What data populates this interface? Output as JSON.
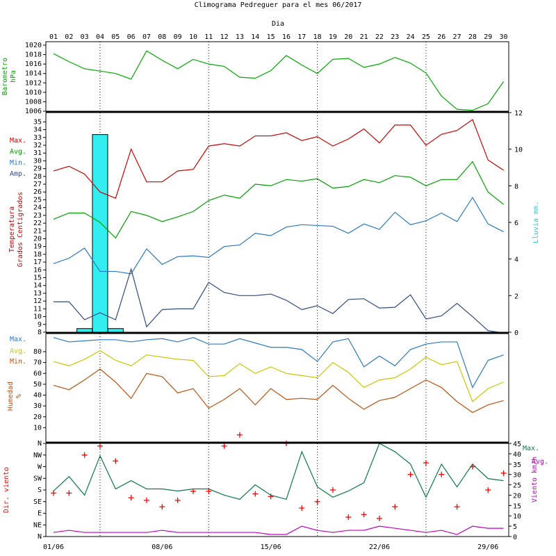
{
  "title": "Climograma Pedreguer para el mes 06/2017",
  "day_axis_label": "Dia",
  "days": [
    "01",
    "02",
    "03",
    "04",
    "05",
    "06",
    "07",
    "08",
    "09",
    "10",
    "11",
    "12",
    "13",
    "14",
    "15",
    "16",
    "17",
    "18",
    "19",
    "20",
    "21",
    "22",
    "23",
    "24",
    "25",
    "26",
    "27",
    "28",
    "29",
    "30"
  ],
  "date_ticks": [
    "01/06",
    "08/06",
    "15/06",
    "22/06",
    "29/06"
  ],
  "colors": {
    "max": "#cc0000",
    "avg": "#00a000",
    "min": "#2a78c8",
    "amp": "#304a80",
    "rain": "#33eeee",
    "hum_avg": "#c8c800",
    "hum_min": "#c05010",
    "wind_dir": "#ff0000",
    "wind_avg": "#c000c0",
    "wind_max": "#0a7a4a",
    "baro": "#00aa00"
  },
  "chart_data": [
    {
      "type": "line",
      "title": "Barometro hPa",
      "ylabel": [
        "Barometro",
        "hPa"
      ],
      "ylim": [
        1006,
        1020
      ],
      "yticks": [
        "1006",
        "1008",
        "1010",
        "1012",
        "1014",
        "1016",
        "1018",
        "1020"
      ],
      "series": [
        {
          "name": "Barometro",
          "values": [
            1018.2,
            1016.5,
            1015,
            1014.5,
            1014,
            1012.8,
            1018.8,
            1016.8,
            1015,
            1017,
            1016,
            1015.5,
            1013.2,
            1013,
            1014.6,
            1017.8,
            1015.8,
            1014,
            1017,
            1017.2,
            1015.3,
            1016,
            1017.4,
            1016.2,
            1014.1,
            1009.2,
            1006.4,
            1006.2,
            1007.6,
            1012.3
          ]
        }
      ]
    },
    {
      "type": "line",
      "title": "Temperatura Grados Centigrados",
      "ylabel": [
        "Temperatura",
        "Grados Centigrados"
      ],
      "ylabel_right": "Lluvia mm.",
      "ylim": [
        8,
        36
      ],
      "yticks": [
        "8",
        "9",
        "10",
        "11",
        "12",
        "13",
        "14",
        "15",
        "16",
        "17",
        "18",
        "19",
        "20",
        "21",
        "22",
        "23",
        "24",
        "25",
        "26",
        "27",
        "28",
        "29",
        "30",
        "31",
        "32",
        "33",
        "34",
        "35"
      ],
      "ylim_right": [
        0,
        12
      ],
      "yticks_right": [
        "0",
        "2",
        "4",
        "6",
        "8",
        "10",
        "12"
      ],
      "legend": [
        "Max.",
        "Avg.",
        "Min.",
        "Amp."
      ],
      "series": [
        {
          "name": "Max.",
          "values": [
            28.7,
            29.3,
            28.3,
            26.0,
            25.2,
            31.5,
            27.3,
            27.3,
            28.7,
            28.9,
            31.9,
            32.2,
            31.9,
            33.2,
            33.2,
            33.6,
            32.6,
            33.1,
            31.9,
            32.8,
            34.1,
            32.3,
            34.6,
            34.6,
            32.0,
            33.4,
            33.9,
            35.3,
            30.1,
            28.8
          ]
        },
        {
          "name": "Avg.",
          "values": [
            22.5,
            23.3,
            23.3,
            22.1,
            20.1,
            23.5,
            23.0,
            22.2,
            22.8,
            23.5,
            24.9,
            25.6,
            25.2,
            27.0,
            26.8,
            27.6,
            27.4,
            27.7,
            26.5,
            26.7,
            27.6,
            27.2,
            28.1,
            27.9,
            26.8,
            27.6,
            27.6,
            29.9,
            26.0,
            24.4
          ]
        },
        {
          "name": "Min.",
          "values": [
            16.8,
            17.5,
            18.8,
            15.8,
            15.8,
            15.5,
            18.7,
            16.7,
            17.7,
            17.8,
            17.6,
            19.0,
            19.2,
            20.7,
            20.4,
            21.5,
            21.8,
            21.7,
            21.6,
            20.7,
            21.9,
            21.2,
            23.4,
            21.8,
            22.3,
            23.3,
            22.2,
            25.3,
            21.9,
            20.9
          ]
        },
        {
          "name": "Amp.",
          "values": [
            11.9,
            11.9,
            9.6,
            10.5,
            9.6,
            16.1,
            8.7,
            10.9,
            11.0,
            11.0,
            14.4,
            13.1,
            12.7,
            12.7,
            12.9,
            12.1,
            10.9,
            11.4,
            10.4,
            12.2,
            12.3,
            11.1,
            11.2,
            12.8,
            9.7,
            10.1,
            11.7,
            10.0,
            8.2,
            7.9
          ]
        }
      ],
      "rain": {
        "name": "Lluvia mm.",
        "values": [
          0,
          0,
          0.2,
          10.8,
          0.2,
          0,
          0,
          0,
          0,
          0,
          0,
          0,
          0,
          0,
          0,
          0,
          0,
          0,
          0,
          0,
          0,
          0,
          0,
          0,
          0,
          0,
          0,
          0,
          0,
          0
        ]
      }
    },
    {
      "type": "line",
      "title": "Humedad %",
      "ylabel": [
        "Humedad",
        "%"
      ],
      "ylim": [
        0,
        100
      ],
      "yticks": [
        "10",
        "20",
        "30",
        "40",
        "50",
        "60",
        "70",
        "80"
      ],
      "legend": [
        "Max.",
        "Avg.",
        "Min."
      ],
      "series": [
        {
          "name": "Max.",
          "values": [
            93,
            89,
            90,
            91,
            91,
            89,
            91,
            92,
            89,
            93,
            87,
            87,
            92,
            88,
            84,
            84,
            82,
            71,
            89,
            92,
            66,
            76,
            67,
            82,
            87,
            89,
            89,
            47,
            72,
            77
          ]
        },
        {
          "name": "Avg.",
          "values": [
            71,
            67,
            73,
            81,
            72,
            67,
            77,
            75,
            73,
            72,
            57,
            58,
            69,
            60,
            66,
            60,
            58,
            56,
            70,
            61,
            47,
            54,
            56,
            64,
            75,
            68,
            71,
            34,
            46,
            52
          ]
        },
        {
          "name": "Min.",
          "values": [
            49,
            45,
            54,
            64,
            52,
            37,
            60,
            57,
            42,
            46,
            28,
            36,
            46,
            31,
            46,
            36,
            37,
            36,
            49,
            37,
            27,
            35,
            38,
            46,
            54,
            47,
            34,
            24,
            31,
            35
          ]
        }
      ]
    },
    {
      "type": "line",
      "title": "Dir. viento / Viento km/h",
      "ylabel": [
        "Dir. viento"
      ],
      "ylabel_right": "Viento km/h",
      "direction_ticks": [
        "N",
        "NE",
        "E",
        "SE",
        "S",
        "SW",
        "W",
        "NW",
        "N"
      ],
      "ylim_right": [
        0,
        45
      ],
      "yticks_right": [
        "0",
        "5",
        "10",
        "15",
        "20",
        "25",
        "30",
        "35",
        "40",
        "45"
      ],
      "legend": [
        "Max.",
        "Avg."
      ],
      "direction_values": [
        168,
        168,
        315,
        350,
        292,
        150,
        140,
        115,
        140,
        175,
        175,
        350,
        393,
        165,
        155,
        360,
        110,
        135,
        180,
        75,
        85,
        70,
        115,
        240,
        285,
        240,
        115,
        270,
        180,
        245
      ],
      "series": [
        {
          "name": "Max.",
          "values": [
            22,
            29,
            20,
            39,
            23,
            27,
            23,
            23,
            22,
            23,
            23,
            20,
            18,
            25,
            20,
            18,
            41,
            24,
            19,
            22,
            26,
            45,
            41,
            35,
            19,
            35,
            24,
            35,
            28,
            27
          ]
        },
        {
          "name": "Avg.",
          "values": [
            2,
            3,
            2,
            2,
            2,
            2,
            2,
            3,
            2,
            2,
            2,
            2,
            2,
            2,
            1,
            1,
            5,
            3,
            2,
            3,
            3,
            5,
            4,
            3,
            2,
            3,
            1,
            5,
            4,
            4
          ]
        }
      ]
    }
  ]
}
